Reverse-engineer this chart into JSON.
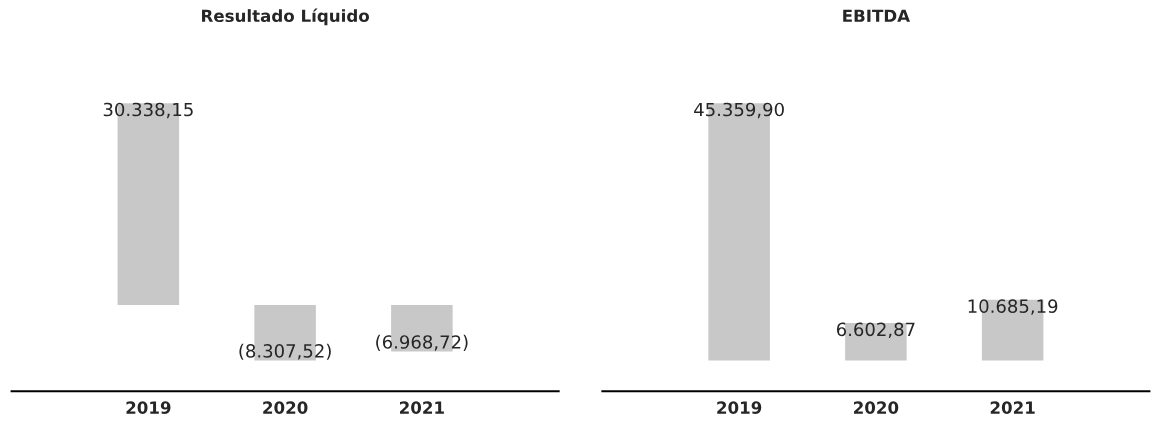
{
  "chart_data": [
    {
      "type": "bar",
      "title": "Resultado Líquido",
      "categories": [
        "2019",
        "2020",
        "2021"
      ],
      "values": [
        30338.15,
        -8307.52,
        -6968.72
      ],
      "color": "#c8c8c8",
      "value_labels": [
        "30.338,15",
        "(8.307,52)",
        "(6.968,72)"
      ],
      "tick_labels": "x",
      "grid": false,
      "legend": false
    },
    {
      "type": "bar",
      "title": "EBITDA",
      "categories": [
        "2019",
        "2020",
        "2021"
      ],
      "values": [
        45359.9,
        6602.87,
        10685.19
      ],
      "color": "#c8c8c8",
      "value_labels": [
        "45.359,90",
        "6.602,87",
        "10.685,19"
      ],
      "tick_labels": "x",
      "grid": false,
      "legend": false
    }
  ]
}
